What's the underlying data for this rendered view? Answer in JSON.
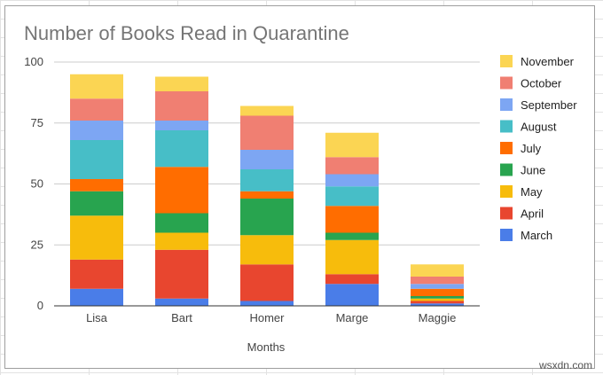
{
  "chart_data": {
    "type": "bar",
    "stacked": true,
    "title": "Number of Books Read in Quarantine",
    "xlabel": "Months",
    "ylabel": "",
    "ylim": [
      0,
      100
    ],
    "yticks": [
      0,
      25,
      50,
      75,
      100
    ],
    "grid": true,
    "legend_position": "right",
    "categories": [
      "Lisa",
      "Bart",
      "Homer",
      "Marge",
      "Maggie"
    ],
    "series": [
      {
        "name": "March",
        "color": "#4a7de8",
        "values": [
          7,
          3,
          2,
          9,
          1
        ]
      },
      {
        "name": "April",
        "color": "#e8462f",
        "values": [
          12,
          20,
          15,
          4,
          1
        ]
      },
      {
        "name": "May",
        "color": "#f7bc0c",
        "values": [
          18,
          7,
          12,
          14,
          1
        ]
      },
      {
        "name": "June",
        "color": "#28a44f",
        "values": [
          10,
          8,
          15,
          3,
          1
        ]
      },
      {
        "name": "July",
        "color": "#ff6d00",
        "values": [
          5,
          19,
          3,
          11,
          3
        ]
      },
      {
        "name": "August",
        "color": "#47bec7",
        "values": [
          16,
          15,
          9,
          8,
          0
        ]
      },
      {
        "name": "September",
        "color": "#7da6f3",
        "values": [
          8,
          4,
          8,
          5,
          2
        ]
      },
      {
        "name": "October",
        "color": "#f07f72",
        "values": [
          9,
          12,
          14,
          7,
          3
        ]
      },
      {
        "name": "November",
        "color": "#fbd553",
        "values": [
          10,
          6,
          4,
          10,
          5
        ]
      }
    ]
  },
  "watermark": "wsxdn.com"
}
